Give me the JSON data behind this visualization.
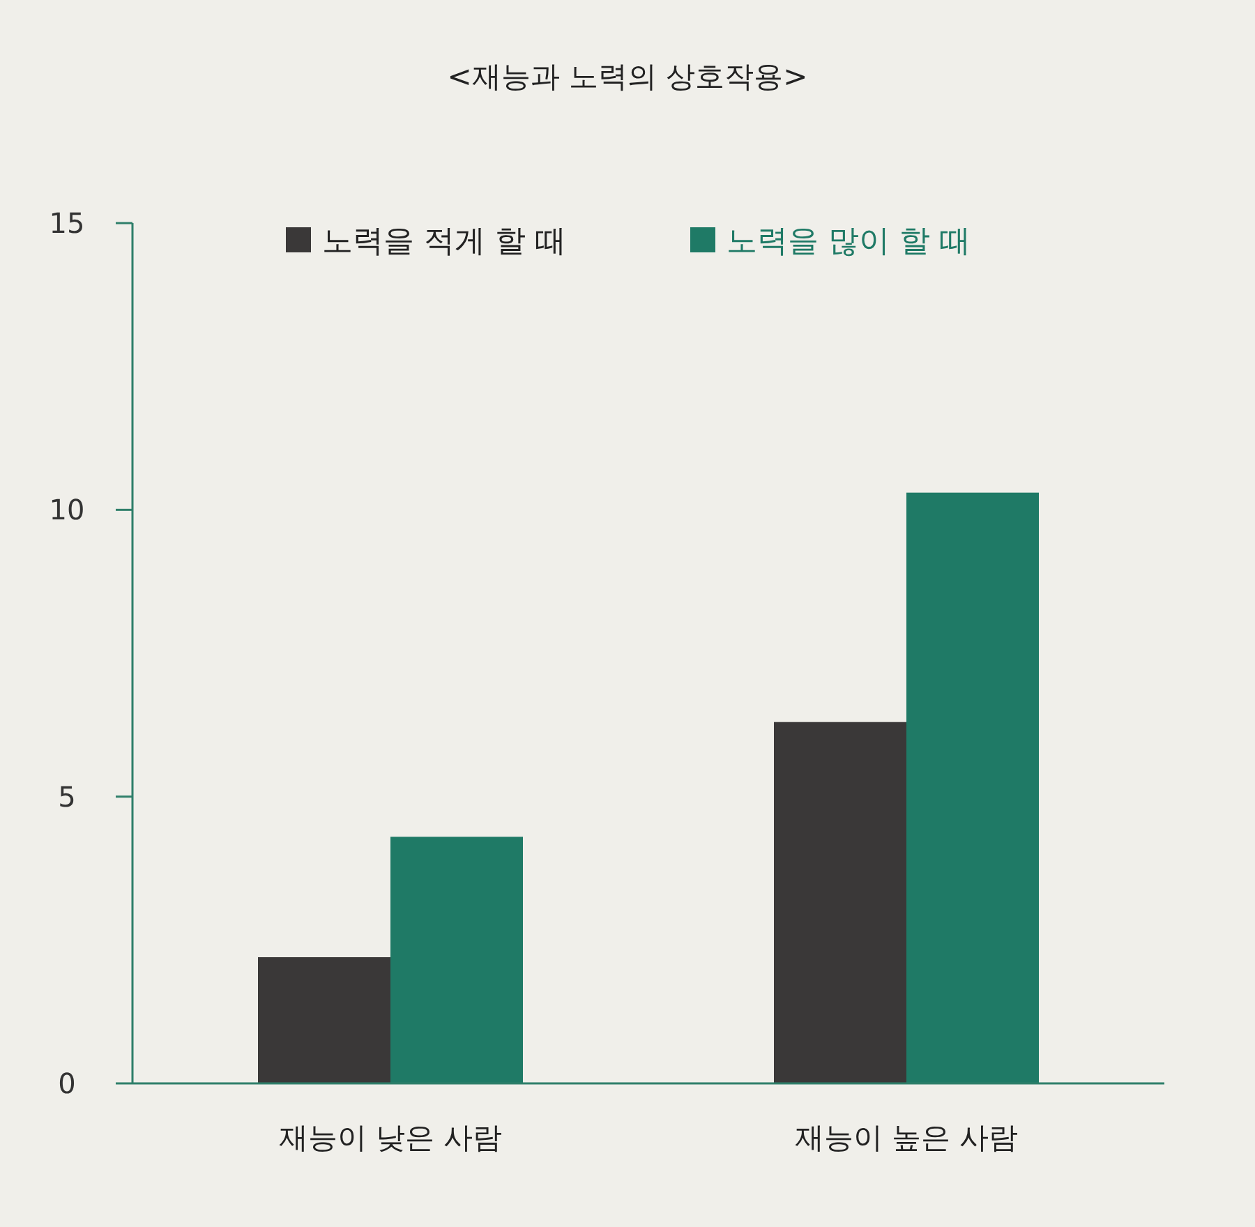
{
  "chart_data": {
    "type": "bar",
    "title": "<재능과 노력의 상호작용>",
    "categories": [
      "재능이 낮은 사람",
      "재능이 높은 사람"
    ],
    "series": [
      {
        "name": "노력을 적게 할 때",
        "color": "#3a3838",
        "values": [
          2.2,
          6.3
        ]
      },
      {
        "name": "노력을 많이 할 때",
        "color": "#1f7a66",
        "values": [
          4.3,
          10.3
        ]
      }
    ],
    "ylim": [
      0,
      15
    ],
    "yticks": [
      0,
      5,
      10,
      15
    ],
    "grid": false,
    "legend": "top"
  }
}
